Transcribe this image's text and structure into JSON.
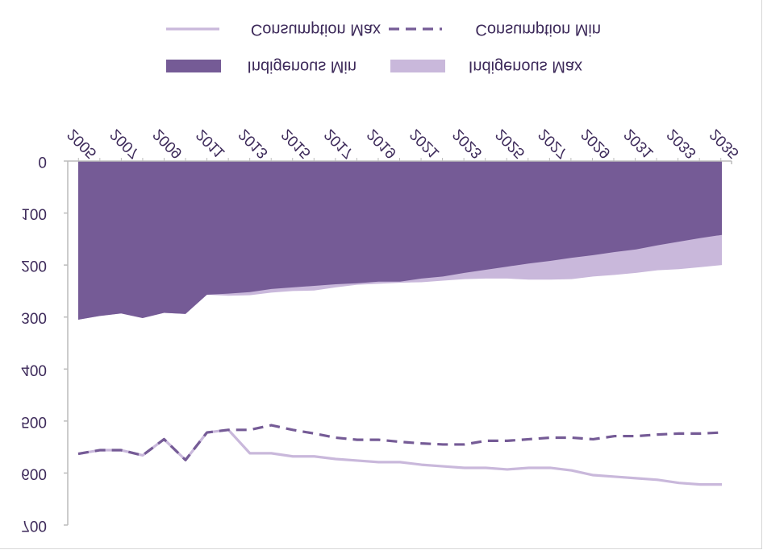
{
  "chart_data": {
    "type": "area",
    "y_axis_inverted": true,
    "text_mirrored_vertically": true,
    "ylim": [
      0,
      700
    ],
    "y_ticks": [
      "0",
      "100",
      "200",
      "300",
      "400",
      "500",
      "600",
      "700"
    ],
    "x_tick_labels": [
      "2005",
      "2007",
      "2009",
      "2011",
      "2013",
      "2015",
      "2017",
      "2019",
      "2021",
      "2023",
      "2025",
      "2027",
      "2029",
      "2031",
      "2033",
      "2035"
    ],
    "x": [
      2005,
      2006,
      2007,
      2008,
      2009,
      2010,
      2011,
      2012,
      2013,
      2014,
      2015,
      2016,
      2017,
      2018,
      2019,
      2020,
      2021,
      2022,
      2023,
      2024,
      2025,
      2026,
      2027,
      2028,
      2029,
      2030,
      2031,
      2032,
      2033,
      2034,
      2035
    ],
    "series": [
      {
        "name": "Consumption Max",
        "style": "solid-line",
        "color": "#c9b8db",
        "values": [
          563,
          556,
          556,
          566,
          535,
          575,
          522,
          517,
          562,
          562,
          568,
          568,
          573,
          576,
          579,
          579,
          584,
          587,
          590,
          590,
          593,
          590,
          590,
          595,
          604,
          607,
          610,
          613,
          619,
          622,
          622
        ]
      },
      {
        "name": "Consumption Min",
        "style": "dashed-line",
        "color": "#755b96",
        "values": [
          563,
          556,
          556,
          566,
          535,
          575,
          522,
          517,
          517,
          508,
          517,
          524,
          532,
          536,
          536,
          540,
          543,
          545,
          545,
          538,
          538,
          535,
          532,
          532,
          535,
          529,
          529,
          526,
          524,
          524,
          522
        ]
      },
      {
        "name": "Indigenous Min",
        "style": "area",
        "color": "#755b96",
        "values": [
          305,
          298,
          293,
          302,
          292,
          294,
          257,
          255,
          252,
          246,
          243,
          240,
          237,
          235,
          232,
          232,
          226,
          222,
          215,
          209,
          203,
          197,
          192,
          186,
          181,
          175,
          170,
          162,
          155,
          148,
          142
        ]
      },
      {
        "name": "Indigenous Max",
        "style": "area",
        "color": "#c9b8db",
        "values": [
          305,
          298,
          293,
          302,
          292,
          294,
          257,
          259,
          258,
          253,
          250,
          249,
          243,
          238,
          236,
          234,
          233,
          230,
          227,
          226,
          226,
          228,
          228,
          227,
          222,
          219,
          215,
          210,
          208,
          204,
          200
        ]
      }
    ],
    "legend": {
      "placement": "top",
      "items": [
        "Consumption Max",
        "Consumption Min",
        "Indigenous Min",
        "Indigenous Max"
      ]
    },
    "colors": {
      "dark_purple": "#755b96",
      "light_purple": "#c9b8db",
      "axis": "#bcbcbc",
      "text": "#3d2a5a"
    }
  }
}
